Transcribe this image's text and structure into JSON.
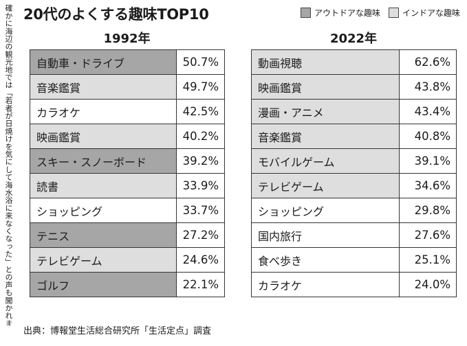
{
  "side_note": "確かに海辺の観光地では「若者が日焼けを気にして海水浴に来なくなった」との声も聞かれま",
  "title": "20代のよくする趣味TOP10",
  "legend": {
    "outdoor": {
      "label": "アウトドアな趣味",
      "color": "#a6a6a6"
    },
    "indoor": {
      "label": "インドアな趣味",
      "color": "#dedede"
    }
  },
  "source": "出典：博報堂生活総合研究所「生活定点」調査",
  "chart_data": [
    {
      "type": "table",
      "title": "1992年",
      "rows": [
        {
          "rank": 1,
          "name": "自動車・ドライブ",
          "value": 50.7,
          "label": "50.7%",
          "category": "outdoor"
        },
        {
          "rank": 2,
          "name": "音楽鑑賞",
          "value": 49.7,
          "label": "49.7%",
          "category": "indoor"
        },
        {
          "rank": 3,
          "name": "カラオケ",
          "value": 42.5,
          "label": "42.5%",
          "category": "neutral"
        },
        {
          "rank": 4,
          "name": "映画鑑賞",
          "value": 40.2,
          "label": "40.2%",
          "category": "indoor"
        },
        {
          "rank": 5,
          "name": "スキー・スノーボード",
          "value": 39.2,
          "label": "39.2%",
          "category": "outdoor"
        },
        {
          "rank": 6,
          "name": "読書",
          "value": 33.9,
          "label": "33.9%",
          "category": "indoor"
        },
        {
          "rank": 7,
          "name": "ショッピング",
          "value": 33.7,
          "label": "33.7%",
          "category": "neutral"
        },
        {
          "rank": 8,
          "name": "テニス",
          "value": 27.2,
          "label": "27.2%",
          "category": "outdoor"
        },
        {
          "rank": 9,
          "name": "テレビゲーム",
          "value": 24.6,
          "label": "24.6%",
          "category": "indoor"
        },
        {
          "rank": 10,
          "name": "ゴルフ",
          "value": 22.1,
          "label": "22.1%",
          "category": "outdoor"
        }
      ]
    },
    {
      "type": "table",
      "title": "2022年",
      "rows": [
        {
          "rank": 1,
          "name": "動画視聴",
          "value": 62.6,
          "label": "62.6%",
          "category": "indoor"
        },
        {
          "rank": 2,
          "name": "映画鑑賞",
          "value": 43.8,
          "label": "43.8%",
          "category": "indoor"
        },
        {
          "rank": 3,
          "name": "漫画・アニメ",
          "value": 43.4,
          "label": "43.4%",
          "category": "indoor"
        },
        {
          "rank": 4,
          "name": "音楽鑑賞",
          "value": 40.8,
          "label": "40.8%",
          "category": "indoor"
        },
        {
          "rank": 5,
          "name": "モバイルゲーム",
          "value": 39.1,
          "label": "39.1%",
          "category": "indoor"
        },
        {
          "rank": 6,
          "name": "テレビゲーム",
          "value": 34.6,
          "label": "34.6%",
          "category": "indoor"
        },
        {
          "rank": 7,
          "name": "ショッピング",
          "value": 29.8,
          "label": "29.8%",
          "category": "neutral"
        },
        {
          "rank": 8,
          "name": "国内旅行",
          "value": 27.6,
          "label": "27.6%",
          "category": "neutral"
        },
        {
          "rank": 9,
          "name": "食べ歩き",
          "value": 25.1,
          "label": "25.1%",
          "category": "neutral"
        },
        {
          "rank": 10,
          "name": "カラオケ",
          "value": 24.0,
          "label": "24.0%",
          "category": "neutral"
        }
      ]
    }
  ]
}
